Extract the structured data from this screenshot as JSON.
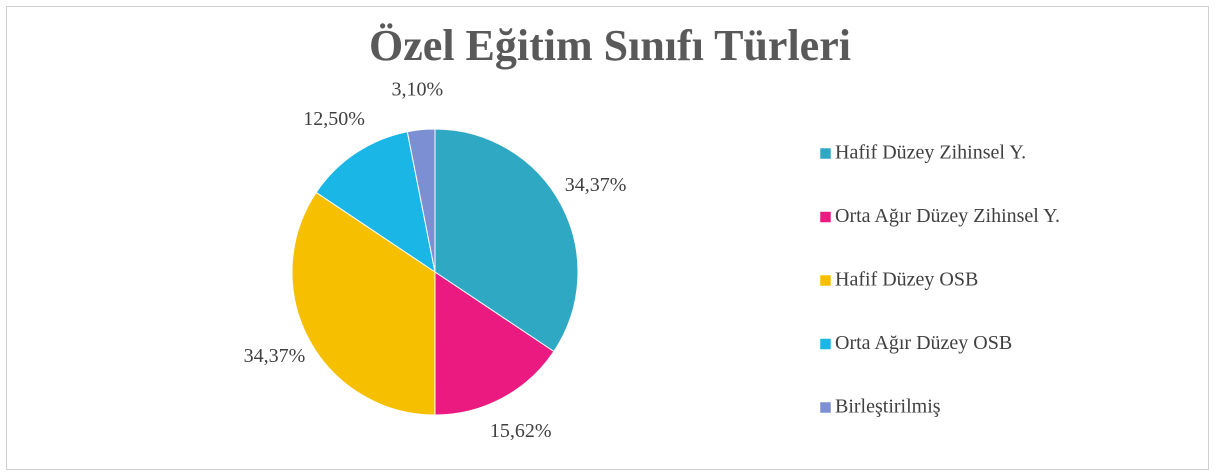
{
  "chart_data": {
    "type": "pie",
    "title": "Özel Eğitim Sınıfı Türleri",
    "categories": [
      "Hafif Düzey Zihinsel Y.",
      "Orta Ağır Düzey Zihinsel Y.",
      "Hafif Düzey OSB",
      "Orta Ağır Düzey OSB",
      "Birleştirilmiş"
    ],
    "values": [
      34.37,
      15.62,
      34.37,
      12.5,
      3.1
    ],
    "value_labels": [
      "34,37%",
      "15,62%",
      "34,37%",
      "12,50%",
      "3,10%"
    ],
    "colors": [
      "#2fa8c3",
      "#ea1a80",
      "#f6c000",
      "#19b6e6",
      "#7d8fd3"
    ],
    "legend": "right"
  }
}
